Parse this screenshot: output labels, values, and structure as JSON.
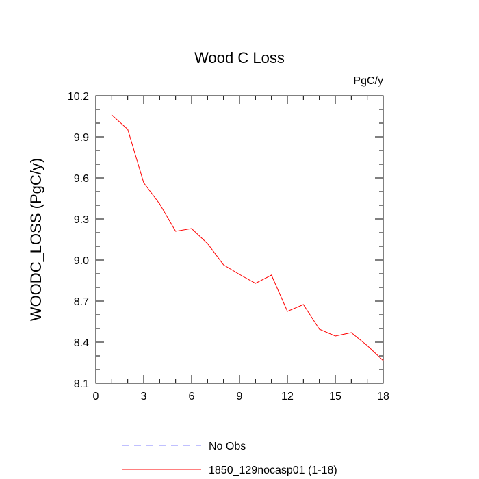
{
  "chart_data": {
    "type": "line",
    "title": "Wood C Loss",
    "units": "PgC/y",
    "ylabel": "WOODC_LOSS  (PgC/y)",
    "xlabel": "",
    "xlim": [
      0,
      18
    ],
    "ylim": [
      8.1,
      10.2
    ],
    "xticks": [
      0,
      3,
      6,
      9,
      12,
      15,
      18
    ],
    "xtick_labels": [
      "0",
      "3",
      "6",
      "9",
      "12",
      "15",
      "18"
    ],
    "yticks": [
      8.1,
      8.4,
      8.7,
      9.0,
      9.3,
      9.6,
      9.9,
      10.2
    ],
    "ytick_labels": [
      "8.1",
      "8.4",
      "8.7",
      "9.0",
      "9.3",
      "9.6",
      "9.9",
      "10.2"
    ],
    "legend_position": "bottom",
    "series": [
      {
        "name": "No Obs",
        "style": "dashed",
        "color": "#8080ff",
        "x": [],
        "values": []
      },
      {
        "name": "1850_129nocasp01 (1-18)",
        "style": "solid",
        "color": "#ff0000",
        "x": [
          1,
          2,
          3,
          4,
          5,
          6,
          7,
          8,
          9,
          10,
          11,
          12,
          13,
          14,
          15,
          16,
          17,
          18
        ],
        "values": [
          10.06,
          9.955,
          9.565,
          9.41,
          9.21,
          9.23,
          9.12,
          8.965,
          8.895,
          8.83,
          8.89,
          8.625,
          8.675,
          8.495,
          8.445,
          8.47,
          8.375,
          8.265
        ]
      }
    ]
  }
}
